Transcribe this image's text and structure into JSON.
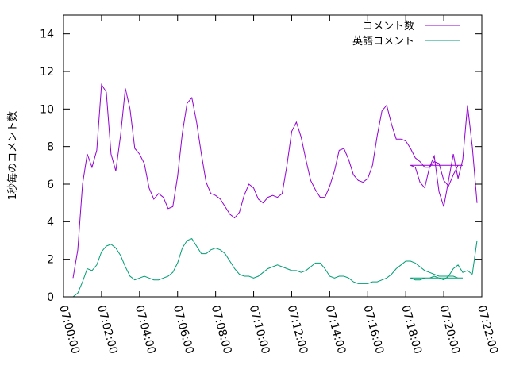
{
  "chart_data": {
    "type": "line",
    "title": "",
    "xlabel": "",
    "ylabel": "1秒毎のコメント数",
    "ylim": [
      0,
      15
    ],
    "yticks": [
      0,
      2,
      4,
      6,
      8,
      10,
      12,
      14
    ],
    "xlim": [
      "07:00:00",
      "07:22:00"
    ],
    "xticks": [
      "07:00:00",
      "07:02:00",
      "07:04:00",
      "07:06:00",
      "07:08:00",
      "07:10:00",
      "07:12:00",
      "07:14:00",
      "07:16:00",
      "07:18:00",
      "07:20:00",
      "07:22:00"
    ],
    "grid": false,
    "legend_position": "top-right",
    "x": [
      "07:00:30",
      "07:00:45",
      "07:01:00",
      "07:01:15",
      "07:01:30",
      "07:01:45",
      "07:02:00",
      "07:02:15",
      "07:02:30",
      "07:02:45",
      "07:03:00",
      "07:03:15",
      "07:03:30",
      "07:03:45",
      "07:04:00",
      "07:04:15",
      "07:04:30",
      "07:04:45",
      "07:05:00",
      "07:05:15",
      "07:05:30",
      "07:05:45",
      "07:06:00",
      "07:06:15",
      "07:06:30",
      "07:06:45",
      "07:07:00",
      "07:07:15",
      "07:07:30",
      "07:07:45",
      "07:08:00",
      "07:08:15",
      "07:08:30",
      "07:08:45",
      "07:09:00",
      "07:09:15",
      "07:09:30",
      "07:09:45",
      "07:10:00",
      "07:10:15",
      "07:10:30",
      "07:10:45",
      "07:11:00",
      "07:11:15",
      "07:11:30",
      "07:11:45",
      "07:12:00",
      "07:12:15",
      "07:12:30",
      "07:12:45",
      "07:13:00",
      "07:13:15",
      "07:13:30",
      "07:13:45",
      "07:14:00",
      "07:14:15",
      "07:14:30",
      "07:14:45",
      "07:15:00",
      "07:15:15",
      "07:15:30",
      "07:15:45",
      "07:16:00",
      "07:16:15",
      "07:16:30",
      "07:16:45",
      "07:17:00",
      "07:17:15",
      "07:17:30",
      "07:17:45",
      "07:18:00",
      "07:18:15",
      "07:18:30",
      "07:18:45",
      "07:19:00",
      "07:19:15",
      "07:19:30",
      "07:19:45",
      "07:20:00",
      "07:20:15",
      "07:20:30",
      "07:20:45",
      "07:21:00"
    ],
    "series": [
      {
        "name": "コメント数",
        "color": "#9400d3",
        "values": [
          1.0,
          2.5,
          6.0,
          7.6,
          6.9,
          7.8,
          11.3,
          10.9,
          7.6,
          6.7,
          8.6,
          11.1,
          10.0,
          7.9,
          7.6,
          7.1,
          5.8,
          5.2,
          5.5,
          5.3,
          4.7,
          4.8,
          6.4,
          8.7,
          10.3,
          10.6,
          9.3,
          7.6,
          6.1,
          5.5,
          5.4,
          5.2,
          4.8,
          4.4,
          4.2,
          4.5,
          5.4,
          6.0,
          5.8,
          5.2,
          5.0,
          5.3,
          5.4,
          5.3,
          5.5,
          7.0,
          8.8,
          9.3,
          8.5,
          7.3,
          6.2,
          5.7,
          5.3,
          5.3,
          5.9,
          6.7,
          7.8,
          7.9,
          7.3,
          6.5,
          6.2,
          6.1,
          6.3,
          7.0,
          8.6,
          9.9,
          10.2,
          9.2,
          8.4,
          8.4,
          8.3,
          7.9,
          7.4,
          7.2,
          6.9,
          6.9,
          7.2,
          7.1,
          6.2,
          5.9,
          6.5,
          7.0,
          7.0
        ]
      },
      {
        "name": "英語コメント",
        "color": "#009e73",
        "values": [
          0.0,
          0.2,
          0.8,
          1.5,
          1.4,
          1.7,
          2.4,
          2.7,
          2.8,
          2.6,
          2.2,
          1.6,
          1.1,
          0.9,
          1.0,
          1.1,
          1.0,
          0.9,
          0.9,
          1.0,
          1.1,
          1.3,
          1.8,
          2.6,
          3.0,
          3.1,
          2.7,
          2.3,
          2.3,
          2.5,
          2.6,
          2.5,
          2.3,
          1.9,
          1.5,
          1.2,
          1.1,
          1.1,
          1.0,
          1.1,
          1.3,
          1.5,
          1.6,
          1.7,
          1.6,
          1.5,
          1.4,
          1.4,
          1.3,
          1.4,
          1.6,
          1.8,
          1.8,
          1.5,
          1.1,
          1.0,
          1.1,
          1.1,
          1.0,
          0.8,
          0.7,
          0.7,
          0.7,
          0.8,
          0.8,
          0.9,
          1.0,
          1.2,
          1.5,
          1.7,
          1.9,
          1.9,
          1.8,
          1.6,
          1.4,
          1.3,
          1.2,
          1.1,
          1.1,
          1.1,
          1.1,
          1.0,
          1.0
        ]
      }
    ],
    "tail_x": [
      "07:18:15",
      "07:18:30",
      "07:18:45",
      "07:19:00",
      "07:19:15",
      "07:19:30",
      "07:19:45",
      "07:20:00",
      "07:20:15",
      "07:20:30",
      "07:20:45",
      "07:21:00",
      "07:21:15",
      "07:21:30"
    ],
    "tail_values_1": [
      7.0,
      6.9,
      6.1,
      5.8,
      6.9,
      7.5,
      5.6,
      4.8,
      6.2,
      7.6,
      6.3,
      7.3,
      10.2,
      8.0
    ],
    "tail_values_2": [
      1.0,
      0.9,
      0.9,
      1.0,
      1.0,
      1.1,
      1.0,
      0.9,
      1.1,
      1.5,
      1.7,
      1.3,
      1.4,
      1.2
    ]
  }
}
